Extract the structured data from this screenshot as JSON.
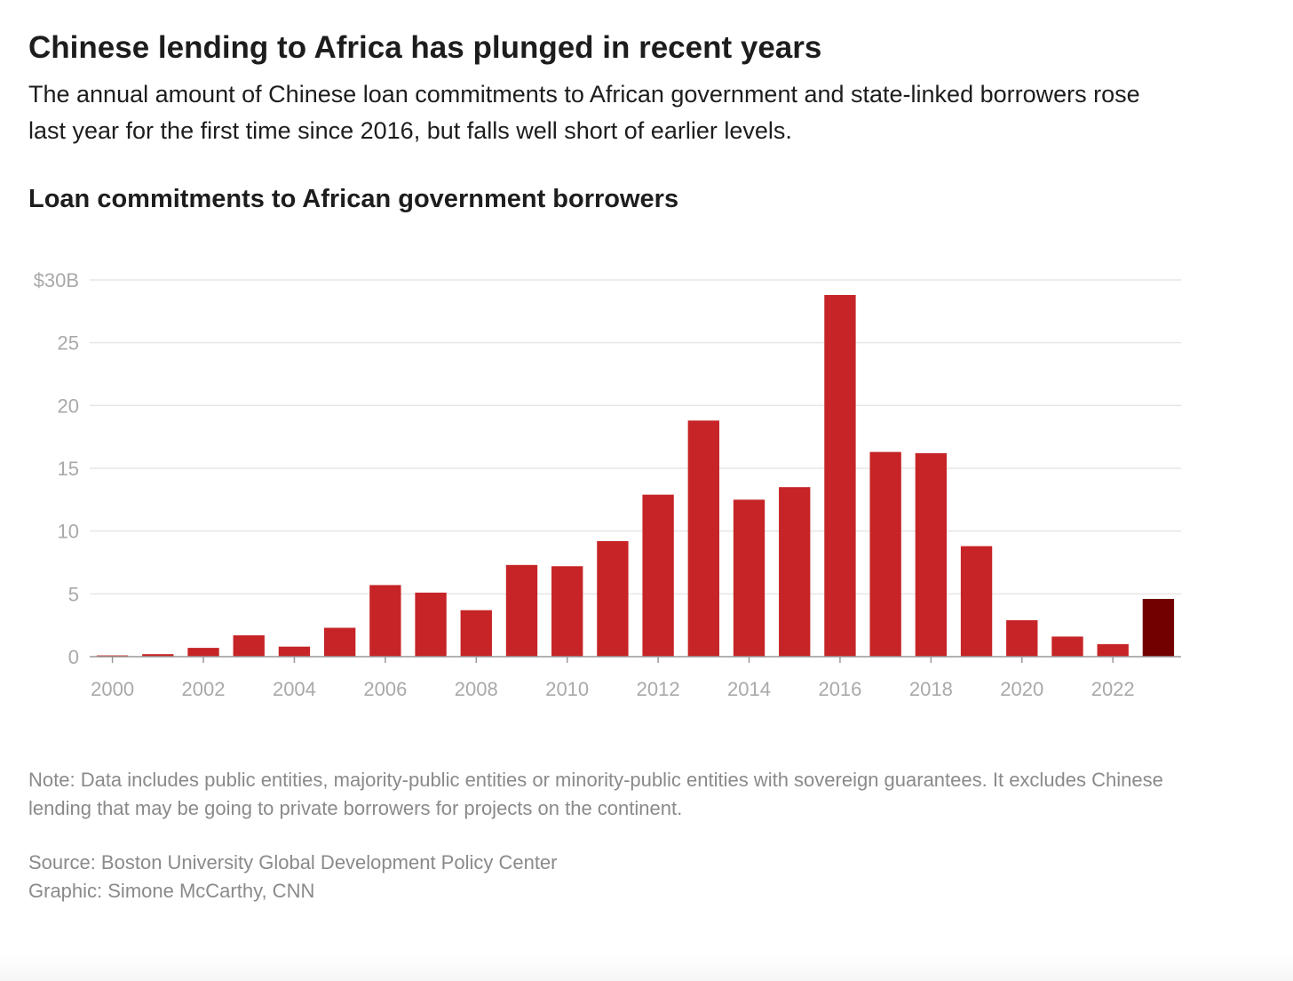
{
  "header": {
    "headline": "Chinese lending to Africa has plunged in recent years",
    "dek": "The annual amount of Chinese loan commitments to African government and state-linked borrowers rose last year for the first time since 2016, but falls well short of earlier levels."
  },
  "footer": {
    "note": "Note: Data includes public entities, majority-public entities or minority-public entities with sovereign guarantees. It excludes Chinese lending that may be going to private borrowers for projects on the continent.",
    "source": "Source: Boston University Global Development Policy Center",
    "credit": "Graphic: Simone McCarthy, CNN"
  },
  "chart_data": {
    "type": "bar",
    "title": "Loan commitments to African government borrowers",
    "xlabel": "",
    "ylabel": "",
    "categories": [
      "2000",
      "2001",
      "2002",
      "2003",
      "2004",
      "2005",
      "2006",
      "2007",
      "2008",
      "2009",
      "2010",
      "2011",
      "2012",
      "2013",
      "2014",
      "2015",
      "2016",
      "2017",
      "2018",
      "2019",
      "2020",
      "2021",
      "2022",
      "2023"
    ],
    "values": [
      0.1,
      0.2,
      0.7,
      1.7,
      0.8,
      2.3,
      5.7,
      5.1,
      3.7,
      7.3,
      7.2,
      9.2,
      12.9,
      18.8,
      12.5,
      13.5,
      28.8,
      16.3,
      16.2,
      8.8,
      2.9,
      1.6,
      1.0,
      4.6
    ],
    "ylim": [
      0,
      30
    ],
    "yticks": [
      0,
      5,
      10,
      15,
      20,
      25,
      30
    ],
    "ytick_labels": [
      "0",
      "5",
      "10",
      "15",
      "20",
      "25",
      "$30B"
    ],
    "xtick_labels": [
      "2000",
      "",
      "2002",
      "",
      "2004",
      "",
      "2006",
      "",
      "2008",
      "",
      "2010",
      "",
      "2012",
      "",
      "2014",
      "",
      "2016",
      "",
      "2018",
      "",
      "2020",
      "",
      "2022",
      ""
    ],
    "grid": true,
    "colors": {
      "bar": "#c62426",
      "highlight": "#720000",
      "grid": "#e6e6e6",
      "axis": "#999999",
      "tick_label": "#a9a9a9"
    },
    "highlight_index": 23
  }
}
